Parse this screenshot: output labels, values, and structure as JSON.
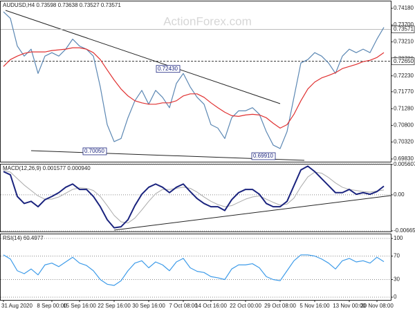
{
  "chart_data": [
    {
      "type": "line",
      "title": "AUDUSD,H4  0.73598 0.73638 0.73527 0.73571",
      "watermark": "ActionForex.com",
      "ylim": [
        0.6977,
        0.7434
      ],
      "yticks": [
        {
          "value": 0.7418,
          "label": "0.74180"
        },
        {
          "value": 0.737,
          "label": "0.73700"
        },
        {
          "value": 0.7321,
          "label": "0.73210"
        },
        {
          "value": 0.7272,
          "label": "0.72720"
        },
        {
          "value": 0.7223,
          "label": "0.72230"
        },
        {
          "value": 0.7177,
          "label": "0.71770"
        },
        {
          "value": 0.7128,
          "label": "0.71280"
        },
        {
          "value": 0.708,
          "label": "0.70800"
        },
        {
          "value": 0.7032,
          "label": "0.70320"
        },
        {
          "value": 0.6983,
          "label": "0.69830"
        }
      ],
      "grid": false,
      "levels": [
        {
          "value": 0.73571,
          "label": "0.73571"
        },
        {
          "value": 0.7265,
          "label": "0.72650"
        }
      ],
      "annotations": [
        {
          "value": 0.7243,
          "label": "0.72430"
        },
        {
          "value": 0.7005,
          "label": "0.70050"
        },
        {
          "value": 0.6991,
          "label": "0.69910"
        }
      ],
      "series": [
        {
          "color": "#5b87b3",
          "values": [
            0.7408,
            0.7389,
            0.7309,
            0.728,
            0.73,
            0.723,
            0.728,
            0.729,
            0.728,
            0.73,
            0.7329,
            0.7309,
            0.73,
            0.728,
            0.7191,
            0.7082,
            0.7033,
            0.7042,
            0.7102,
            0.7151,
            0.7181,
            0.7141,
            0.7181,
            0.7161,
            0.7131,
            0.7201,
            0.723,
            0.7191,
            0.7161,
            0.7141,
            0.7082,
            0.7072,
            0.7042,
            0.7102,
            0.7122,
            0.7122,
            0.7131,
            0.7112,
            0.7062,
            0.7023,
            0.7013,
            0.7062,
            0.7161,
            0.726,
            0.727,
            0.729,
            0.728,
            0.726,
            0.723,
            0.728,
            0.73,
            0.729,
            0.73,
            0.729,
            0.7329,
            0.7363
          ]
        },
        {
          "color": "#e03030",
          "values": [
            0.725,
            0.727,
            0.728,
            0.7288,
            0.7292,
            0.7292,
            0.7292,
            0.7296,
            0.7298,
            0.73,
            0.7304,
            0.7304,
            0.73,
            0.729,
            0.727,
            0.724,
            0.7211,
            0.7185,
            0.7165,
            0.7151,
            0.7145,
            0.7141,
            0.7141,
            0.7145,
            0.7145,
            0.7151,
            0.7165,
            0.7171,
            0.7171,
            0.7161,
            0.7145,
            0.7131,
            0.7118,
            0.7108,
            0.7106,
            0.711,
            0.7112,
            0.711,
            0.7102,
            0.7086,
            0.7072,
            0.7082,
            0.7112,
            0.7151,
            0.7185,
            0.7205,
            0.7217,
            0.7224,
            0.7232,
            0.7244,
            0.725,
            0.7256,
            0.7264,
            0.7268,
            0.7276,
            0.729
          ]
        }
      ]
    },
    {
      "type": "line",
      "title": "MACD(12,26,9) 0.001577 0.000940",
      "ylim": [
        -0.006656,
        0.005607
      ],
      "yticks": [
        0.005607,
        {
          "value": 0,
          "label": "0.00"
        },
        -0.006656
      ],
      "grid": true,
      "series": [
        {
          "color": "#aaaaaa",
          "values": [
            0.0045,
            0.0042,
            0.003,
            0.0018,
            0.0008,
            -0.0002,
            -0.0008,
            -0.0008,
            -0.0004,
            0.0003,
            0.001,
            0.0013,
            0.0012,
            0.0008,
            -0.0003,
            -0.002,
            -0.0038,
            -0.005,
            -0.0052,
            -0.0043,
            -0.0028,
            -0.0012,
            0.0002,
            0.001,
            0.001,
            0.0012,
            0.0014,
            0.0012,
            0.0005,
            -0.0004,
            -0.0012,
            -0.0018,
            -0.0022,
            -0.002,
            -0.0014,
            -0.0008,
            -0.0004,
            -0.0002,
            -0.0008,
            -0.0014,
            -0.0019,
            -0.0017,
            -0.0006,
            0.0015,
            0.0033,
            0.0042,
            0.004,
            0.0032,
            0.0022,
            0.0014,
            0.001,
            0.0008,
            0.0006,
            0.0005,
            0.0007,
            0.0009
          ]
        },
        {
          "color": "#1a237e",
          "values": [
            0.0043,
            0.0037,
            -0.0003,
            -0.0016,
            -0.0012,
            -0.0022,
            -0.0009,
            -0.0003,
            0.0004,
            0.0014,
            0.002,
            0.001,
            0.001,
            -0.0003,
            -0.0022,
            -0.0046,
            -0.0061,
            -0.0059,
            -0.0046,
            -0.002,
            0.0001,
            0.0014,
            0.002,
            0.0014,
            0.0004,
            0.0014,
            0.002,
            0.0006,
            -0.0007,
            -0.0016,
            -0.0022,
            -0.0022,
            -0.0029,
            -0.0009,
            0.0004,
            0.001,
            0.001,
            0.0001,
            -0.0016,
            -0.0022,
            -0.0022,
            -0.0012,
            0.0017,
            0.0046,
            0.0053,
            0.0043,
            0.003,
            0.0017,
            0.0004,
            0.0004,
            0.001,
            0.0001,
            0.0004,
            0.0001,
            0.0006,
            0.0016
          ]
        }
      ]
    },
    {
      "type": "line",
      "title": "RSI(14) 60.4977",
      "ylim": [
        0,
        100
      ],
      "yticks": [
        100,
        70,
        30,
        0
      ],
      "grid": true,
      "categories": [
        "31 Aug 2020",
        null,
        null,
        null,
        null,
        null,
        null,
        "8 Sep 00:00",
        null,
        null,
        null,
        "15 Sep 16:00",
        null,
        null,
        null,
        null,
        "22 Sep 16:00",
        null,
        null,
        null,
        null,
        "30 Sep 16:00",
        null,
        null,
        null,
        null,
        "7 Oct 08:00",
        null,
        null,
        null,
        "14 Oct 16:00",
        null,
        null,
        null,
        null,
        "22 Oct 00:00",
        null,
        null,
        null,
        null,
        "29 Oct 08:00",
        null,
        null,
        null,
        null,
        "5 Nov 16:00",
        null,
        null,
        null,
        null,
        "13 Nov 00:00",
        null,
        null,
        null,
        "20 Nov 08:00",
        null
      ],
      "series": [
        {
          "color": "#3d9be9",
          "values": [
            72,
            65,
            45,
            40,
            48,
            38,
            55,
            58,
            52,
            60,
            68,
            58,
            54,
            45,
            30,
            22,
            20,
            28,
            45,
            58,
            62,
            50,
            60,
            55,
            45,
            60,
            66,
            50,
            44,
            42,
            35,
            33,
            30,
            48,
            55,
            55,
            57,
            50,
            35,
            30,
            28,
            45,
            62,
            72,
            72,
            70,
            65,
            58,
            48,
            62,
            66,
            60,
            62,
            58,
            68,
            60.4977
          ]
        }
      ]
    }
  ]
}
